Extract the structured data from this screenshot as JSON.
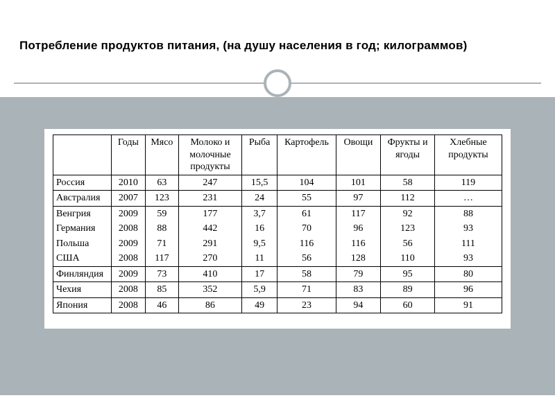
{
  "title": "Потребление продуктов питания, (на душу населения в год; килограммов)",
  "table": {
    "columns": [
      "",
      "Годы",
      "Мясо",
      "Молоко и молочные продукты",
      "Рыба",
      "Картофель",
      "Овощи",
      "Фрукты и ягоды",
      "Хлебные продукты"
    ],
    "groups": [
      [
        {
          "country": "Россия",
          "year": "2010",
          "meat": "63",
          "milk": "247",
          "fish": "15,5",
          "potato": "104",
          "veg": "101",
          "fruit": "58",
          "bread": "119"
        }
      ],
      [
        {
          "country": "Австралия",
          "year": "2007",
          "meat": "123",
          "milk": "231",
          "fish": "24",
          "potato": "55",
          "veg": "97",
          "fruit": "112",
          "bread": "…"
        }
      ],
      [
        {
          "country": "Венгрия",
          "year": "2009",
          "meat": "59",
          "milk": "177",
          "fish": "3,7",
          "potato": "61",
          "veg": "117",
          "fruit": "92",
          "bread": "88"
        },
        {
          "country": "Германия",
          "year": "2008",
          "meat": "88",
          "milk": "442",
          "fish": "16",
          "potato": "70",
          "veg": "96",
          "fruit": "123",
          "bread": "93"
        },
        {
          "country": "Польша",
          "year": "2009",
          "meat": "71",
          "milk": "291",
          "fish": "9,5",
          "potato": "116",
          "veg": "116",
          "fruit": "56",
          "bread": "111"
        },
        {
          "country": "США",
          "year": "2008",
          "meat": "117",
          "milk": "270",
          "fish": "11",
          "potato": "56",
          "veg": "128",
          "fruit": "110",
          "bread": "93"
        }
      ],
      [
        {
          "country": "Финляндия",
          "year": "2009",
          "meat": "73",
          "milk": "410",
          "fish": "17",
          "potato": "58",
          "veg": "79",
          "fruit": "95",
          "bread": "80"
        }
      ],
      [
        {
          "country": "Чехия",
          "year": "2008",
          "meat": "85",
          "milk": "352",
          "fish": "5,9",
          "potato": "71",
          "veg": "83",
          "fruit": "89",
          "bread": "96"
        }
      ],
      [
        {
          "country": "Япония",
          "year": "2008",
          "meat": "46",
          "milk": "86",
          "fish": "49",
          "potato": "23",
          "veg": "94",
          "fruit": "60",
          "bread": "91"
        }
      ]
    ],
    "col_widths_pct": [
      13,
      7.5,
      7.5,
      14,
      8,
      13,
      10,
      12,
      15
    ]
  },
  "colors": {
    "background_body": "#aab3b7",
    "background_title": "#ffffff",
    "table_bg": "#ffffff",
    "border": "#000000",
    "text": "#000000"
  },
  "fonts": {
    "title_family": "Arial, sans-serif",
    "title_size_pt": 13,
    "title_weight": "bold",
    "table_family": "Times New Roman, serif",
    "table_size_pt": 10.5
  }
}
